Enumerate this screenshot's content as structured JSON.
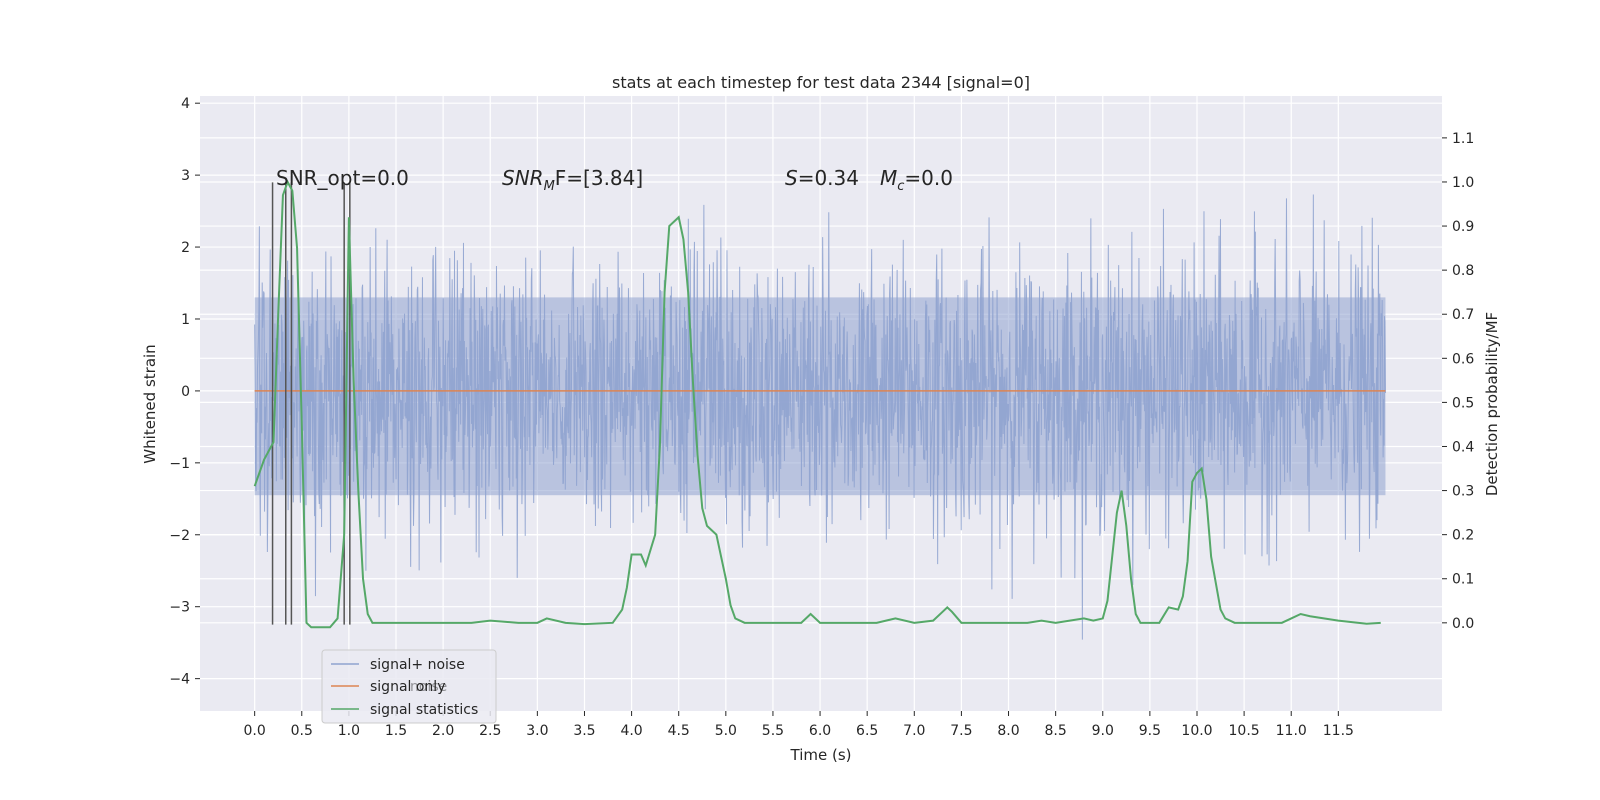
{
  "chart_data": {
    "type": "line",
    "title": "stats at each timestep for test data 2344 [signal=0]",
    "xlabel": "Time (s)",
    "ylabel": "Whitened strain",
    "y2label": "Detection probability/MF",
    "xlim": [
      -0.58,
      12.6
    ],
    "ylim": [
      -4.45,
      4.1
    ],
    "y2lim": [
      -0.2,
      1.195
    ],
    "x_ticks": [
      0.0,
      0.5,
      1.0,
      1.5,
      2.0,
      2.5,
      3.0,
      3.5,
      4.0,
      4.5,
      5.0,
      5.5,
      6.0,
      6.5,
      7.0,
      7.5,
      8.0,
      8.5,
      9.0,
      9.5,
      10.0,
      10.5,
      11.0,
      11.5
    ],
    "x_tick_labels": [
      "0.0",
      "0.5",
      "1.0",
      "1.5",
      "2.0",
      "2.5",
      "3.0",
      "3.5",
      "4.0",
      "4.5",
      "5.0",
      "5.5",
      "6.0",
      "6.5",
      "7.0",
      "7.5",
      "8.0",
      "8.5",
      "9.0",
      "9.5",
      "10.0",
      "10.5",
      "11.0",
      "11.5"
    ],
    "y_ticks": [
      -4,
      -3,
      -2,
      -1,
      0,
      1,
      2,
      3,
      4
    ],
    "y_tick_labels": [
      "−4",
      "−3",
      "−2",
      "−1",
      "0",
      "1",
      "2",
      "3",
      "4"
    ],
    "y2_ticks": [
      0.0,
      0.1,
      0.2,
      0.3,
      0.4,
      0.5,
      0.6,
      0.7,
      0.8,
      0.9,
      1.0,
      1.1
    ],
    "y2_tick_labels": [
      "0.0",
      "0.1",
      "0.2",
      "0.3",
      "0.4",
      "0.5",
      "0.6",
      "0.7",
      "0.8",
      "0.9",
      "1.0",
      "1.1"
    ],
    "grid": true,
    "legend": {
      "placement": "lower-left",
      "entries": [
        "signal+ noise",
        "signal only",
        "signal statistics"
      ],
      "ghost_text": "noise"
    },
    "annotations": {
      "snr_opt": "SNR_opt=0.0",
      "snr_mf_main": "SNR",
      "snr_mf_sub": "M",
      "snr_mf_rest": "F=[3.84]",
      "s_main": "S",
      "s_rest": "=0.34",
      "mc_main": "M",
      "mc_sub": "c",
      "mc_rest": "=0.0"
    },
    "colors": {
      "noise": "#8fa3cf",
      "signal": "#dd8452",
      "stats": "#55a868",
      "vlines": "#555555",
      "background": "#eaeaf2",
      "grid": "#ffffff"
    },
    "series": [
      {
        "name": "signal+ noise",
        "axis": "left",
        "x_range": [
          0.0,
          12.0
        ],
        "mean": 0.0,
        "std": 0.92,
        "lower_extent": [
          -1.45,
          -2.8
        ],
        "upper_extent": [
          1.3,
          3.7
        ]
      },
      {
        "name": "signal only",
        "axis": "left",
        "x": [
          0.0,
          12.0
        ],
        "values": [
          0.0,
          0.0
        ]
      },
      {
        "name": "signal statistics",
        "axis": "right",
        "x": [
          0.0,
          0.1,
          0.2,
          0.25,
          0.3,
          0.35,
          0.4,
          0.45,
          0.5,
          0.55,
          0.6,
          0.7,
          0.8,
          0.88,
          0.95,
          1.0,
          1.05,
          1.1,
          1.15,
          1.2,
          1.25,
          1.3,
          1.5,
          2.0,
          2.3,
          2.5,
          2.8,
          3.0,
          3.1,
          3.3,
          3.5,
          3.8,
          3.9,
          3.95,
          4.0,
          4.1,
          4.15,
          4.25,
          4.3,
          4.35,
          4.4,
          4.45,
          4.5,
          4.55,
          4.6,
          4.65,
          4.7,
          4.75,
          4.8,
          4.85,
          4.9,
          4.95,
          5.0,
          5.05,
          5.1,
          5.2,
          5.5,
          5.8,
          5.9,
          6.0,
          6.2,
          6.6,
          6.8,
          7.0,
          7.2,
          7.3,
          7.35,
          7.4,
          7.5,
          7.6,
          8.0,
          8.2,
          8.35,
          8.5,
          8.65,
          8.8,
          8.9,
          9.0,
          9.05,
          9.1,
          9.15,
          9.2,
          9.25,
          9.3,
          9.35,
          9.4,
          9.5,
          9.6,
          9.7,
          9.8,
          9.85,
          9.9,
          9.95,
          10.0,
          10.05,
          10.1,
          10.15,
          10.2,
          10.25,
          10.3,
          10.4,
          10.6,
          10.9,
          11.0,
          11.1,
          11.2,
          11.5,
          11.8,
          11.95
        ],
        "values": [
          0.31,
          0.37,
          0.41,
          0.7,
          0.97,
          1.0,
          0.98,
          0.85,
          0.45,
          0.0,
          -0.01,
          -0.01,
          -0.01,
          0.01,
          0.2,
          0.92,
          0.55,
          0.3,
          0.1,
          0.02,
          0.0,
          0.0,
          0.0,
          0.0,
          0.0,
          0.005,
          0.0,
          0.0,
          0.01,
          0.0,
          -0.003,
          0.0,
          0.03,
          0.08,
          0.155,
          0.155,
          0.13,
          0.2,
          0.4,
          0.75,
          0.9,
          0.91,
          0.92,
          0.87,
          0.75,
          0.55,
          0.38,
          0.26,
          0.22,
          0.21,
          0.2,
          0.15,
          0.1,
          0.04,
          0.01,
          0.0,
          0.0,
          0.0,
          0.02,
          0.0,
          0.0,
          0.0,
          0.01,
          0.0,
          0.005,
          0.025,
          0.035,
          0.025,
          0.0,
          0.0,
          0.0,
          0.0,
          0.005,
          0.0,
          0.005,
          0.01,
          0.005,
          0.01,
          0.05,
          0.15,
          0.25,
          0.3,
          0.22,
          0.1,
          0.02,
          0.0,
          0.0,
          0.0,
          0.035,
          0.03,
          0.06,
          0.14,
          0.32,
          0.34,
          0.35,
          0.28,
          0.15,
          0.09,
          0.03,
          0.01,
          0.0,
          0.0,
          0.0,
          0.01,
          0.02,
          0.015,
          0.005,
          -0.002,
          0.0
        ]
      }
    ],
    "vlines": [
      {
        "x": 0.19,
        "y_top": 2.9,
        "y_bottom": -3.25
      },
      {
        "x": 0.33,
        "y_top": 2.9,
        "y_bottom": -3.25
      },
      {
        "x": 0.39,
        "y_top": 2.9,
        "y_bottom": -3.25
      },
      {
        "x": 0.95,
        "y_top": 2.9,
        "y_bottom": -3.25
      },
      {
        "x": 1.01,
        "y_top": 2.9,
        "y_bottom": -3.25
      }
    ]
  }
}
